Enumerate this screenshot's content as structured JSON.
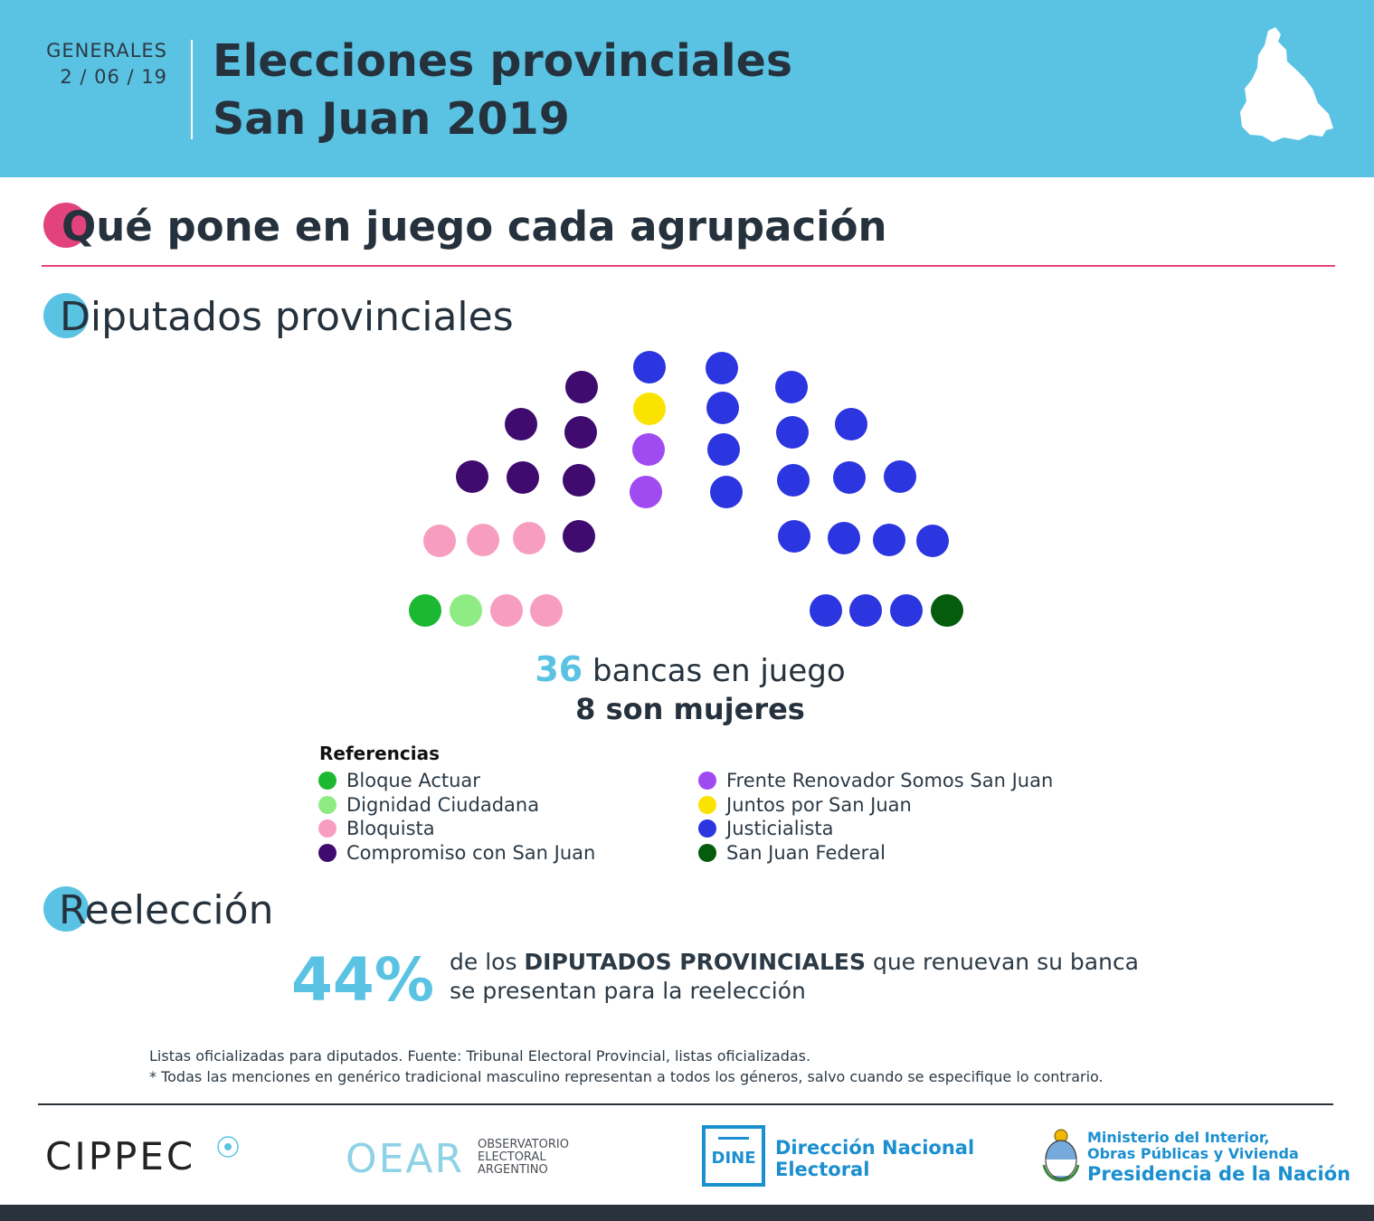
{
  "header": {
    "election_type": "GENERALES",
    "date": "2 / 06 / 19",
    "title_line1": "Elecciones provinciales",
    "title_line2": "San Juan 2019",
    "bg_color": "#5ac3e3"
  },
  "section1": {
    "initial": "Q",
    "rest": "ué pone en juego cada agrupación",
    "accent": "#e2437c"
  },
  "section2": {
    "initial": "D",
    "rest": "iputados provinciales",
    "accent": "#5ac3e3"
  },
  "chart_data": {
    "type": "parliament",
    "title": "Diputados provinciales",
    "total_seats": 36,
    "parties": [
      {
        "name": "Bloque Actuar",
        "seats": 1,
        "color": "#1db832"
      },
      {
        "name": "Dignidad Ciudadana",
        "seats": 1,
        "color": "#8fec84"
      },
      {
        "name": "Bloquista",
        "seats": 5,
        "color": "#f79ec0"
      },
      {
        "name": "Compromiso con San Juan",
        "seats": 7,
        "color": "#3f0b6e"
      },
      {
        "name": "Frente Renovador Somos San Juan",
        "seats": 2,
        "color": "#a04af2"
      },
      {
        "name": "Juntos por San Juan",
        "seats": 1,
        "color": "#fbe300"
      },
      {
        "name": "Justicialista",
        "seats": 18,
        "color": "#2b35e0"
      },
      {
        "name": "San Juan Federal",
        "seats": 1,
        "color": "#045c0c"
      }
    ],
    "seat_order": [
      "Bloque Actuar",
      "Dignidad Ciudadana",
      "Bloquista",
      "Bloquista",
      "Bloquista",
      "Bloquista",
      "Bloquista",
      "Compromiso con San Juan",
      "Compromiso con San Juan",
      "Compromiso con San Juan",
      "Compromiso con San Juan",
      "Compromiso con San Juan",
      "Compromiso con San Juan",
      "Compromiso con San Juan",
      "Frente Renovador Somos San Juan",
      "Frente Renovador Somos San Juan",
      "Juntos por San Juan",
      "Justicialista",
      "Justicialista",
      "Justicialista",
      "Justicialista",
      "Justicialista",
      "Justicialista",
      "Justicialista",
      "Justicialista",
      "Justicialista",
      "Justicialista",
      "Justicialista",
      "Justicialista",
      "Justicialista",
      "Justicialista",
      "Justicialista",
      "Justicialista",
      "Justicialista",
      "Justicialista",
      "San Juan Federal"
    ],
    "legend_title": "Referencias"
  },
  "seats_summary": {
    "count": "36",
    "label": " bancas en juego",
    "women": "8 son mujeres"
  },
  "section3": {
    "initial": "R",
    "rest": "eelección",
    "accent": "#5ac3e3"
  },
  "reelection": {
    "percent": "44%",
    "text_pre": "de los ",
    "text_bold": "DIPUTADOS PROVINCIALES",
    "text_post": " que renuevan su banca",
    "text_line2": "se presentan para la reelección"
  },
  "notes": {
    "source": "Listas oficializadas para diputados. Fuente: Tribunal Electoral Provincial, listas oficializadas.",
    "disclaimer": "* Todas las menciones en genérico tradicional masculino representan a todos los géneros, salvo cuando se especifique lo contrario."
  },
  "logos": {
    "cippec": "CIPPEC",
    "oear": "OEAR",
    "oear_sub": [
      "OBSERVATORIO",
      "ELECTORAL",
      "ARGENTINO"
    ],
    "dine": "DINE",
    "dine_name": [
      "Dirección Nacional",
      "Electoral"
    ],
    "ministry": [
      "Ministerio del Interior,",
      "Obras Públicas y Vivienda",
      "Presidencia de la Nación"
    ]
  }
}
